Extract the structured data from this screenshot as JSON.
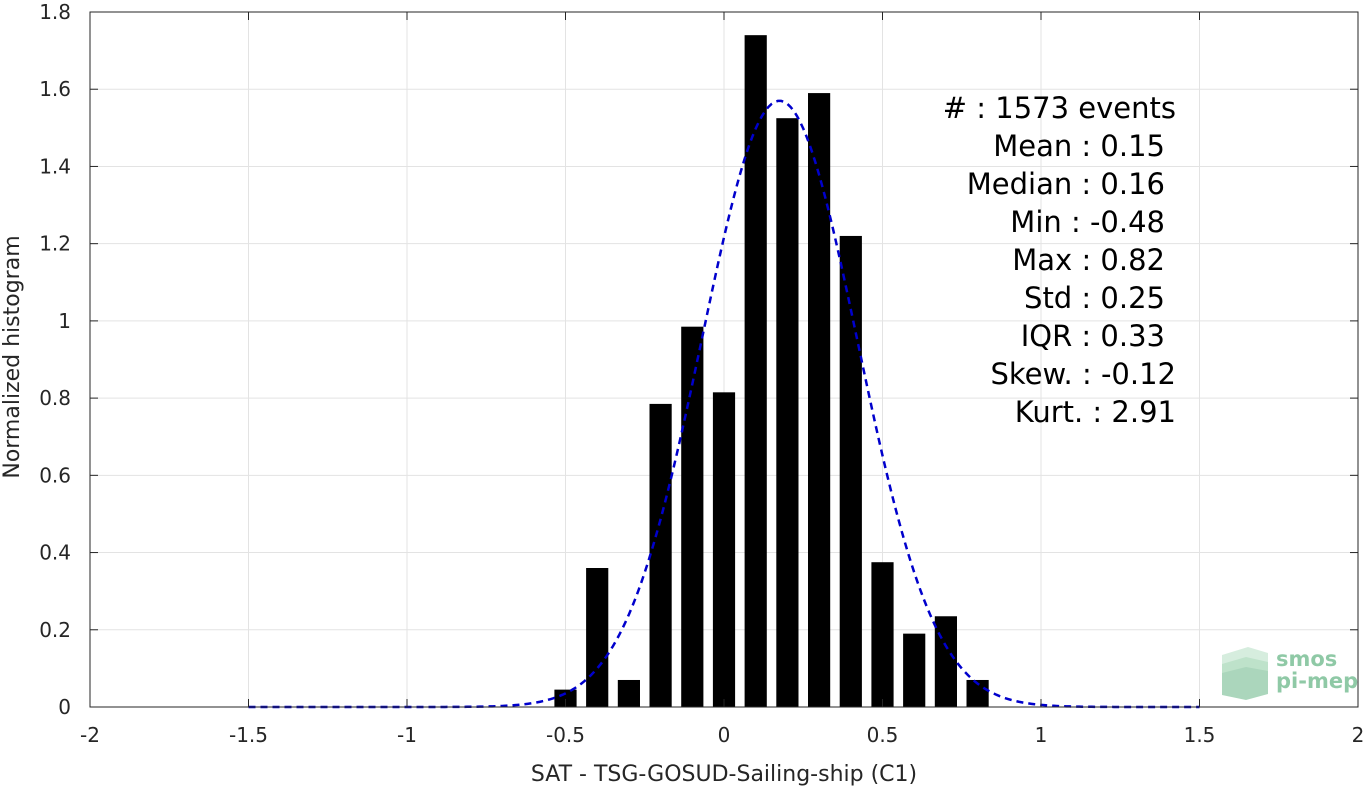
{
  "chart_data": {
    "type": "bar",
    "xlabel": "SAT - TSG-GOSUD-Sailing-ship (C1)",
    "ylabel": "Normalized histogram",
    "xlim": [
      -2,
      2
    ],
    "ylim": [
      0,
      1.8
    ],
    "xticks": [
      -2,
      -1.5,
      -1,
      -0.5,
      0,
      0.5,
      1,
      1.5,
      2
    ],
    "xtick_labels": [
      "-2",
      "-1.5",
      "-1",
      "-0.5",
      "0",
      "0.5",
      "1",
      "1.5",
      "2"
    ],
    "yticks": [
      0,
      0.2,
      0.4,
      0.6,
      0.8,
      1,
      1.2,
      1.4,
      1.6,
      1.8
    ],
    "ytick_labels": [
      "0",
      "0.2",
      "0.4",
      "0.6",
      "0.8",
      "1",
      "1.2",
      "1.4",
      "1.6",
      "1.8"
    ],
    "grid": true,
    "bar_width": 0.07,
    "bar_color": "#000000",
    "bins": [
      {
        "x": -0.5,
        "y": 0.045
      },
      {
        "x": -0.4,
        "y": 0.36
      },
      {
        "x": -0.3,
        "y": 0.07
      },
      {
        "x": -0.2,
        "y": 0.785
      },
      {
        "x": -0.1,
        "y": 0.985
      },
      {
        "x": 0.0,
        "y": 0.815
      },
      {
        "x": 0.1,
        "y": 1.74
      },
      {
        "x": 0.2,
        "y": 1.525
      },
      {
        "x": 0.3,
        "y": 1.59
      },
      {
        "x": 0.4,
        "y": 1.22
      },
      {
        "x": 0.5,
        "y": 0.375
      },
      {
        "x": 0.6,
        "y": 0.19
      },
      {
        "x": 0.7,
        "y": 0.235
      },
      {
        "x": 0.8,
        "y": 0.07
      }
    ],
    "fit_curve": {
      "style": "dashed",
      "color": "#0000cc",
      "x_range": [
        -1.5,
        1.5
      ],
      "mean": 0.175,
      "std": 0.245,
      "peak": 1.57
    },
    "stats": [
      "#  : 1573 events",
      "Mean : 0.15",
      "Median : 0.16",
      "Min : -0.48",
      "Max : 0.82",
      "Std : 0.25",
      "IQR : 0.33",
      "Skew. : -0.12",
      "Kurt. : 2.91"
    ]
  },
  "logo": {
    "line1": "smos",
    "line2": "pi-mep"
  }
}
